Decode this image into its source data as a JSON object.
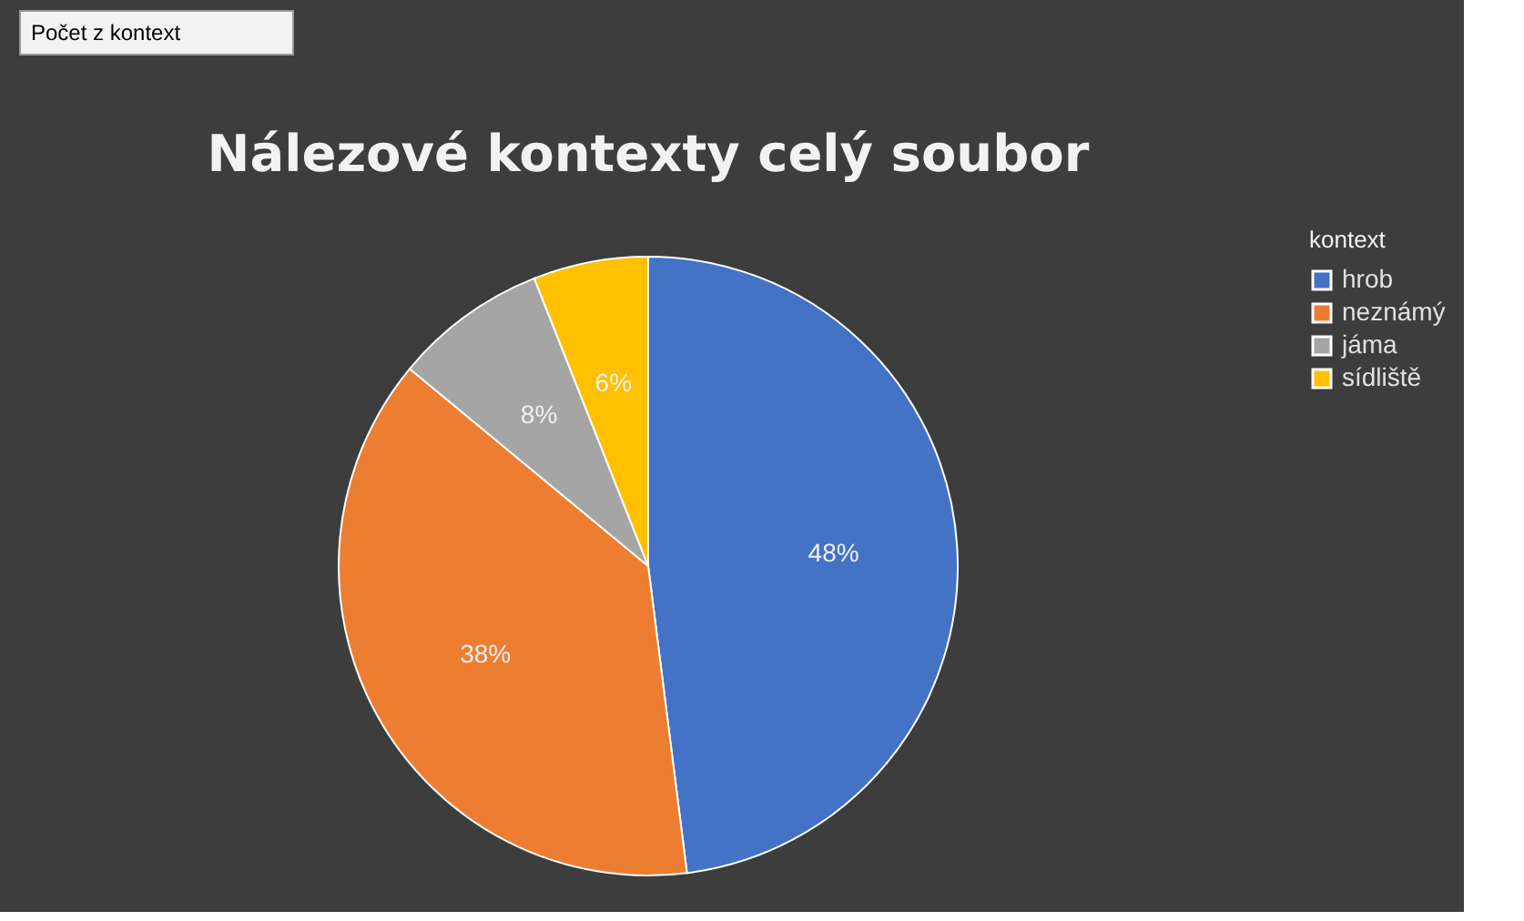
{
  "chart_data": {
    "type": "pie",
    "title": "Nálezové kontexty celý soubor",
    "categories": [
      "hrob",
      "neznámý",
      "jáma",
      "sídliště"
    ],
    "values": [
      48,
      38,
      8,
      6
    ],
    "colors": [
      "#4472c4",
      "#ed7d31",
      "#a5a5a5",
      "#ffc000"
    ],
    "value_labels": [
      "48%",
      "38%",
      "8%",
      "6%"
    ],
    "legend": "right",
    "legend_title": "kontext",
    "annotations": [
      "Počet z kontext"
    ]
  }
}
